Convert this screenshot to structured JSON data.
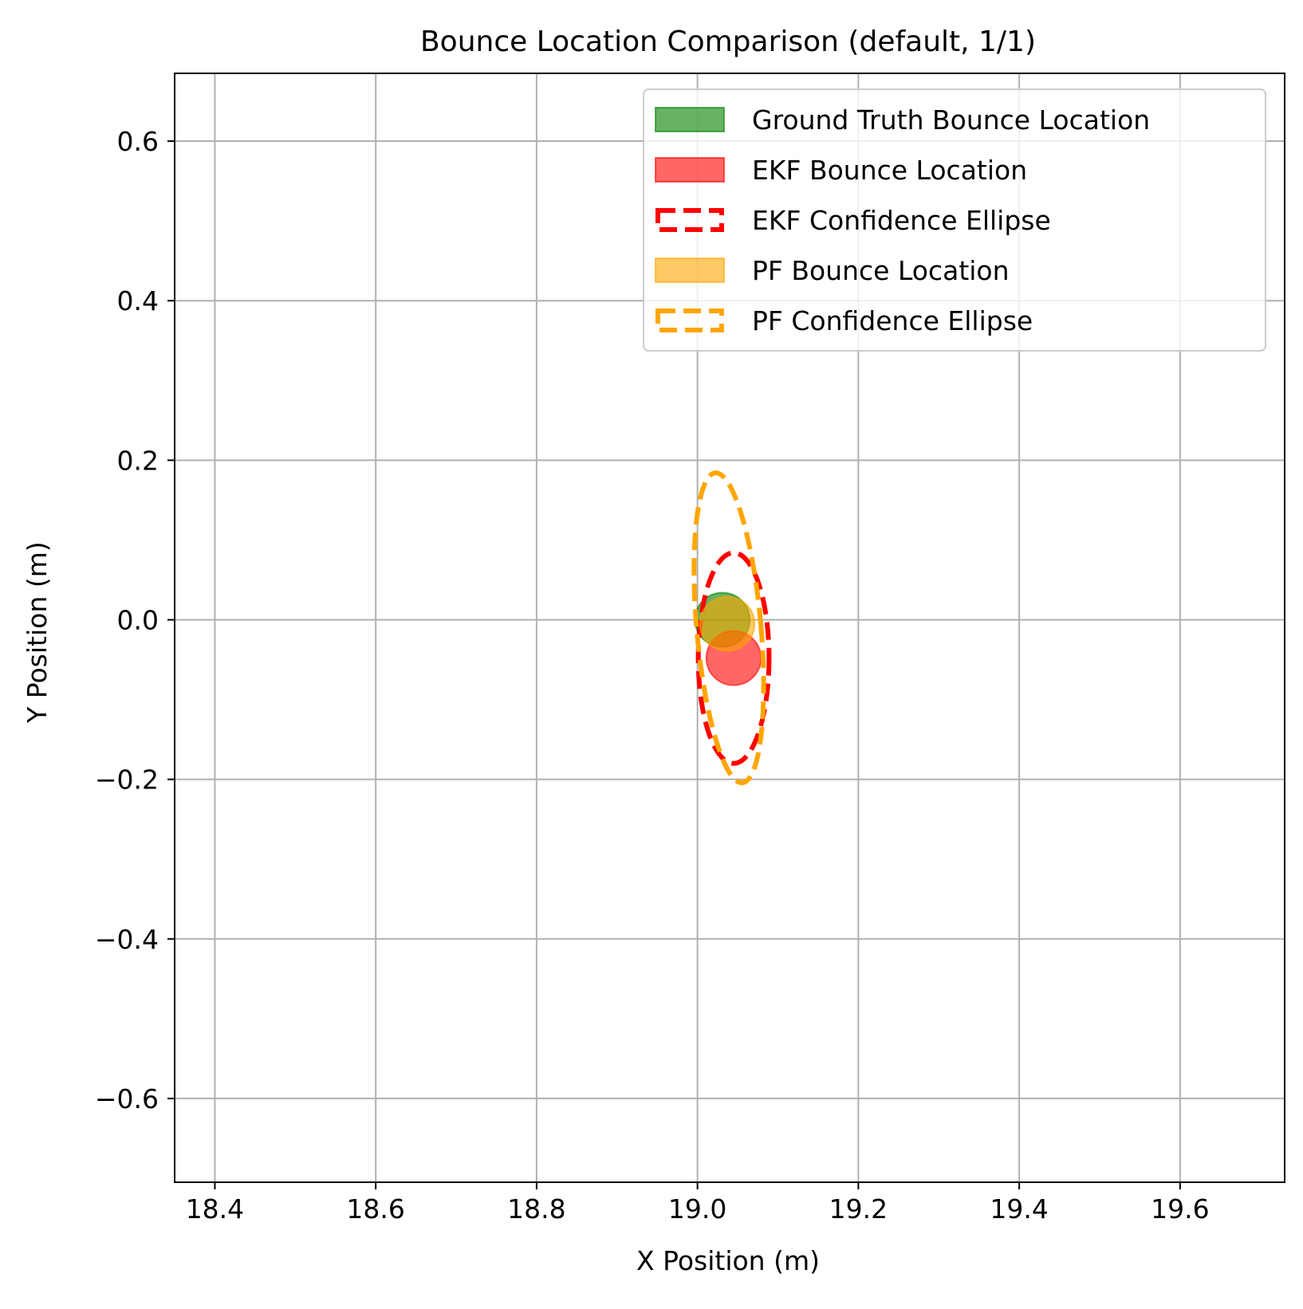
{
  "chart_data": {
    "type": "scatter",
    "title": "Bounce Location Comparison (default, 1/1)",
    "xlabel": "X Position (m)",
    "ylabel": "Y Position (m)",
    "xlim": [
      18.35,
      19.73
    ],
    "ylim": [
      -0.705,
      0.685
    ],
    "xticks": [
      18.4,
      18.6,
      18.8,
      19.0,
      19.2,
      19.4,
      19.6
    ],
    "xtick_labels": [
      "18.4",
      "18.6",
      "18.8",
      "19.0",
      "19.2",
      "19.4",
      "19.6"
    ],
    "yticks": [
      0.6,
      0.4,
      0.2,
      0.0,
      -0.2,
      -0.4,
      -0.6
    ],
    "ytick_labels": [
      "0.6",
      "0.4",
      "0.2",
      "0.0",
      "−0.2",
      "−0.4",
      "−0.6"
    ],
    "grid": true,
    "legend_position": "top-right",
    "series": [
      {
        "name": "Ground Truth Bounce Location",
        "kind": "circle",
        "color": "#008000",
        "opacity": 0.6,
        "center": [
          19.031,
          0.0
        ],
        "radius": 0.034
      },
      {
        "name": "EKF Bounce Location",
        "kind": "circle",
        "color": "#ff0000",
        "opacity": 0.6,
        "center": [
          19.045,
          -0.048
        ],
        "radius": 0.034
      },
      {
        "name": "EKF Confidence Ellipse",
        "kind": "ellipse",
        "color": "#ff0000",
        "dashed": true,
        "center": [
          19.045,
          -0.048
        ],
        "semi_x": 0.044,
        "semi_y": 0.132
      },
      {
        "name": "PF Bounce Location",
        "kind": "circle",
        "color": "#ffa500",
        "opacity": 0.6,
        "center": [
          19.037,
          -0.005
        ],
        "radius": 0.034
      },
      {
        "name": "PF Confidence Ellipse",
        "kind": "ellipse",
        "color": "#ffa500",
        "dashed": true,
        "center": [
          19.039,
          -0.01
        ],
        "semi_x": 0.04,
        "semi_y": 0.195,
        "tilt_deg": -5
      }
    ]
  }
}
